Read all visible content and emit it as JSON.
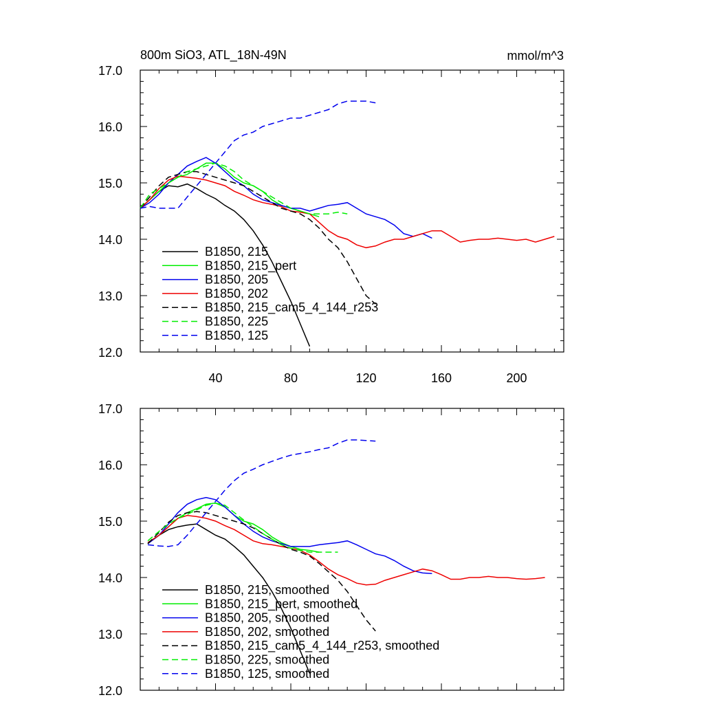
{
  "chart_data": [
    {
      "type": "line",
      "title": "800m SiO3, ATL_18N-49N",
      "units": "mmol/m^3",
      "xlabel": "",
      "ylabel": "",
      "xlim": [
        0,
        225
      ],
      "ylim": [
        12.0,
        17.0
      ],
      "xticks": [
        40,
        80,
        120,
        160,
        200
      ],
      "yticks": [
        12.0,
        13.0,
        14.0,
        15.0,
        16.0,
        17.0
      ],
      "grid": false,
      "legend_position": "bottom-left",
      "series": [
        {
          "name": "B1850, 215",
          "color": "#000000",
          "dash": "solid",
          "x": [
            0,
            5,
            10,
            15,
            20,
            25,
            30,
            35,
            40,
            45,
            50,
            55,
            60,
            65,
            70,
            75,
            80,
            85,
            90
          ],
          "y": [
            14.55,
            14.7,
            14.85,
            14.95,
            14.93,
            14.98,
            14.9,
            14.8,
            14.72,
            14.6,
            14.5,
            14.35,
            14.15,
            13.9,
            13.6,
            13.25,
            12.9,
            12.5,
            12.1
          ]
        },
        {
          "name": "B1850, 215_pert",
          "color": "#00ee00",
          "dash": "solid",
          "x": [
            0,
            5,
            10,
            15,
            20,
            25,
            30,
            35,
            40,
            45,
            50,
            55,
            60,
            65,
            70,
            75,
            80,
            85,
            90,
            95
          ],
          "y": [
            14.55,
            14.7,
            14.85,
            15.0,
            15.1,
            15.15,
            15.25,
            15.35,
            15.35,
            15.25,
            15.1,
            15.0,
            14.95,
            14.85,
            14.7,
            14.6,
            14.55,
            14.5,
            14.45,
            14.4
          ]
        },
        {
          "name": "B1850, 205",
          "color": "#0000ee",
          "dash": "solid",
          "x": [
            0,
            5,
            10,
            15,
            20,
            25,
            30,
            35,
            40,
            45,
            50,
            55,
            60,
            65,
            70,
            75,
            80,
            85,
            90,
            95,
            100,
            105,
            110,
            115,
            120,
            125,
            130,
            135,
            140,
            145,
            150,
            155
          ],
          "y": [
            14.55,
            14.65,
            14.8,
            15.0,
            15.15,
            15.3,
            15.38,
            15.45,
            15.35,
            15.2,
            15.05,
            14.95,
            14.8,
            14.7,
            14.65,
            14.6,
            14.55,
            14.55,
            14.5,
            14.55,
            14.6,
            14.62,
            14.65,
            14.55,
            14.45,
            14.4,
            14.35,
            14.25,
            14.1,
            14.05,
            14.1,
            14.02
          ]
        },
        {
          "name": "B1850, 202",
          "color": "#ee0000",
          "dash": "solid",
          "x": [
            0,
            5,
            10,
            15,
            20,
            25,
            30,
            35,
            40,
            45,
            50,
            55,
            60,
            65,
            70,
            75,
            80,
            85,
            90,
            95,
            100,
            105,
            110,
            115,
            120,
            125,
            130,
            135,
            140,
            145,
            150,
            155,
            160,
            165,
            170,
            175,
            180,
            185,
            190,
            195,
            200,
            205,
            210,
            215,
            220
          ],
          "y": [
            14.55,
            14.7,
            14.9,
            15.05,
            15.12,
            15.1,
            15.08,
            15.05,
            15.0,
            14.95,
            14.85,
            14.78,
            14.7,
            14.65,
            14.62,
            14.58,
            14.5,
            14.48,
            14.45,
            14.3,
            14.15,
            14.05,
            14.0,
            13.9,
            13.85,
            13.88,
            13.95,
            14.0,
            14.0,
            14.05,
            14.1,
            14.15,
            14.15,
            14.05,
            13.95,
            13.98,
            14.0,
            14.0,
            14.02,
            14.0,
            13.98,
            14.0,
            13.95,
            14.0,
            14.05
          ]
        },
        {
          "name": "B1850, 215_cam5_4_144_r253",
          "color": "#000000",
          "dash": "dashed",
          "x": [
            0,
            5,
            10,
            15,
            20,
            25,
            30,
            35,
            40,
            45,
            50,
            55,
            60,
            65,
            70,
            75,
            80,
            85,
            90,
            95,
            100,
            105,
            110,
            115,
            120,
            125
          ],
          "y": [
            14.55,
            14.75,
            14.95,
            15.1,
            15.15,
            15.2,
            15.2,
            15.15,
            15.1,
            15.05,
            15.0,
            14.95,
            14.85,
            14.75,
            14.65,
            14.55,
            14.5,
            14.45,
            14.35,
            14.2,
            14.0,
            13.85,
            13.6,
            13.3,
            13.0,
            12.85
          ]
        },
        {
          "name": "B1850, 225",
          "color": "#00ee00",
          "dash": "dashed",
          "x": [
            0,
            5,
            10,
            15,
            20,
            25,
            30,
            35,
            40,
            45,
            50,
            55,
            60,
            65,
            70,
            75,
            80,
            85,
            90,
            95,
            100,
            105,
            110
          ],
          "y": [
            14.55,
            14.8,
            14.9,
            15.0,
            15.1,
            15.2,
            15.25,
            15.3,
            15.35,
            15.3,
            15.2,
            15.05,
            14.95,
            14.85,
            14.75,
            14.65,
            14.55,
            14.5,
            14.45,
            14.45,
            14.45,
            14.48,
            14.45
          ]
        },
        {
          "name": "B1850, 125",
          "color": "#0000ee",
          "dash": "dashed",
          "x": [
            0,
            5,
            10,
            15,
            20,
            25,
            30,
            35,
            40,
            45,
            50,
            55,
            60,
            65,
            70,
            75,
            80,
            85,
            90,
            95,
            100,
            105,
            110,
            115,
            120,
            125
          ],
          "y": [
            14.55,
            14.58,
            14.55,
            14.55,
            14.55,
            14.75,
            14.95,
            15.15,
            15.35,
            15.55,
            15.75,
            15.85,
            15.9,
            16.0,
            16.05,
            16.1,
            16.15,
            16.15,
            16.2,
            16.25,
            16.3,
            16.4,
            16.45,
            16.45,
            16.45,
            16.42
          ]
        }
      ]
    },
    {
      "type": "line",
      "title": "",
      "xlim": [
        0,
        225
      ],
      "ylim": [
        12.0,
        17.0
      ],
      "xticks": [
        40,
        80,
        120,
        160,
        200
      ],
      "yticks": [
        12.0,
        13.0,
        14.0,
        15.0,
        16.0,
        17.0
      ],
      "grid": false,
      "legend_position": "bottom-left",
      "series": [
        {
          "name": "B1850, 215, smoothed",
          "color": "#000000",
          "dash": "solid",
          "x": [
            4,
            10,
            15,
            20,
            25,
            30,
            35,
            40,
            45,
            50,
            55,
            60,
            65,
            70,
            75,
            80,
            85,
            90
          ],
          "y": [
            14.6,
            14.75,
            14.85,
            14.9,
            14.93,
            14.95,
            14.85,
            14.75,
            14.68,
            14.55,
            14.4,
            14.2,
            14.0,
            13.75,
            13.45,
            13.1,
            12.7,
            12.3
          ]
        },
        {
          "name": "B1850, 215_pert, smoothed",
          "color": "#00ee00",
          "dash": "solid",
          "x": [
            4,
            10,
            15,
            20,
            25,
            30,
            35,
            40,
            45,
            50,
            55,
            60,
            65,
            70,
            75,
            80,
            85,
            90,
            95
          ],
          "y": [
            14.62,
            14.75,
            14.9,
            15.05,
            15.15,
            15.22,
            15.3,
            15.32,
            15.25,
            15.1,
            15.0,
            14.95,
            14.85,
            14.72,
            14.62,
            14.55,
            14.5,
            14.48,
            14.45
          ]
        },
        {
          "name": "B1850, 205, smoothed",
          "color": "#0000ee",
          "dash": "solid",
          "x": [
            4,
            10,
            15,
            20,
            25,
            30,
            35,
            40,
            45,
            50,
            55,
            60,
            65,
            70,
            75,
            80,
            85,
            90,
            95,
            100,
            105,
            110,
            115,
            120,
            125,
            130,
            135,
            140,
            145,
            150,
            155
          ],
          "y": [
            14.6,
            14.75,
            14.95,
            15.15,
            15.3,
            15.38,
            15.42,
            15.38,
            15.25,
            15.1,
            14.95,
            14.82,
            14.72,
            14.65,
            14.6,
            14.55,
            14.55,
            14.55,
            14.58,
            14.6,
            14.62,
            14.65,
            14.58,
            14.5,
            14.42,
            14.38,
            14.3,
            14.2,
            14.12,
            14.08,
            14.07
          ]
        },
        {
          "name": "B1850, 202, smoothed",
          "color": "#ee0000",
          "dash": "solid",
          "x": [
            4,
            10,
            15,
            20,
            25,
            30,
            35,
            40,
            45,
            50,
            55,
            60,
            65,
            70,
            75,
            80,
            85,
            90,
            95,
            100,
            105,
            110,
            115,
            120,
            125,
            130,
            135,
            140,
            145,
            150,
            155,
            160,
            165,
            170,
            175,
            180,
            185,
            190,
            195,
            200,
            205,
            210,
            215
          ],
          "y": [
            14.62,
            14.75,
            14.9,
            15.05,
            15.1,
            15.08,
            15.05,
            15.0,
            14.92,
            14.85,
            14.75,
            14.65,
            14.6,
            14.58,
            14.55,
            14.52,
            14.48,
            14.4,
            14.28,
            14.15,
            14.05,
            13.98,
            13.9,
            13.87,
            13.88,
            13.95,
            14.0,
            14.05,
            14.1,
            14.15,
            14.12,
            14.05,
            13.97,
            13.97,
            14.0,
            14.0,
            14.02,
            14.0,
            14.0,
            13.98,
            13.97,
            13.98,
            14.0
          ]
        },
        {
          "name": "B1850, 215_cam5_4_144_r253, smoothed",
          "color": "#000000",
          "dash": "dashed",
          "x": [
            4,
            10,
            15,
            20,
            25,
            30,
            35,
            40,
            45,
            50,
            55,
            60,
            65,
            70,
            75,
            80,
            85,
            90,
            95,
            100,
            105,
            110,
            115,
            120,
            125
          ],
          "y": [
            14.6,
            14.8,
            14.98,
            15.1,
            15.15,
            15.17,
            15.15,
            15.1,
            15.05,
            15.0,
            14.95,
            14.88,
            14.78,
            14.68,
            14.58,
            14.5,
            14.45,
            14.38,
            14.25,
            14.1,
            13.95,
            13.75,
            13.5,
            13.25,
            13.05
          ]
        },
        {
          "name": "B1850, 225, smoothed",
          "color": "#00ee00",
          "dash": "dashed",
          "x": [
            4,
            10,
            15,
            20,
            25,
            30,
            35,
            40,
            45,
            50,
            55,
            60,
            65,
            70,
            75,
            80,
            85,
            90,
            95,
            100,
            105
          ],
          "y": [
            14.65,
            14.82,
            14.95,
            15.05,
            15.12,
            15.2,
            15.28,
            15.32,
            15.28,
            15.15,
            15.02,
            14.9,
            14.78,
            14.68,
            14.58,
            14.52,
            14.48,
            14.45,
            14.45,
            14.45,
            14.45
          ]
        },
        {
          "name": "B1850, 125, smoothed",
          "color": "#0000ee",
          "dash": "dashed",
          "x": [
            4,
            10,
            15,
            20,
            25,
            30,
            35,
            40,
            45,
            50,
            55,
            60,
            65,
            70,
            75,
            80,
            85,
            90,
            95,
            100,
            105,
            110,
            115,
            120,
            125
          ],
          "y": [
            14.58,
            14.56,
            14.55,
            14.58,
            14.75,
            14.95,
            15.15,
            15.35,
            15.55,
            15.72,
            15.85,
            15.92,
            16.0,
            16.06,
            16.12,
            16.17,
            16.2,
            16.23,
            16.27,
            16.3,
            16.38,
            16.44,
            16.44,
            16.43,
            16.42
          ]
        }
      ]
    }
  ]
}
